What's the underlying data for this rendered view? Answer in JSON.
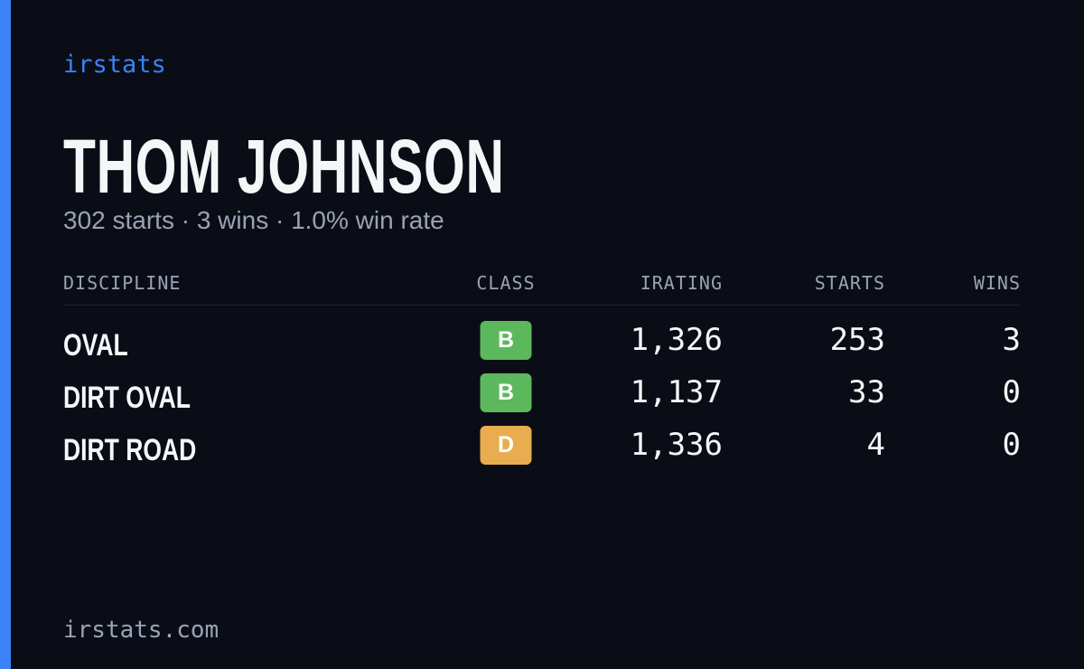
{
  "brand": "irstats",
  "driver": {
    "name": "THOM JOHNSON",
    "summary": "302 starts · 3 wins · 1.0% win rate"
  },
  "table": {
    "columns": [
      "DISCIPLINE",
      "CLASS",
      "IRATING",
      "STARTS",
      "WINS"
    ],
    "rows": [
      [
        "OVAL",
        "B",
        "1,326",
        "253",
        "3"
      ],
      [
        "DIRT OVAL",
        "B",
        "1,137",
        "33",
        "0"
      ],
      [
        "DIRT ROAD",
        "D",
        "1,336",
        "4",
        "0"
      ]
    ],
    "badge_colors": {
      "B": "#5cb85c",
      "D": "#e9ad50"
    }
  },
  "footer": "irstats.com"
}
